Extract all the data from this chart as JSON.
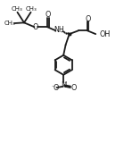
{
  "bg_color": "#ffffff",
  "line_color": "#1a1a1a",
  "lw": 1.3,
  "figsize": [
    1.39,
    1.59
  ],
  "dpi": 100,
  "xlim": [
    0,
    10
  ],
  "ylim": [
    0,
    11.5
  ]
}
